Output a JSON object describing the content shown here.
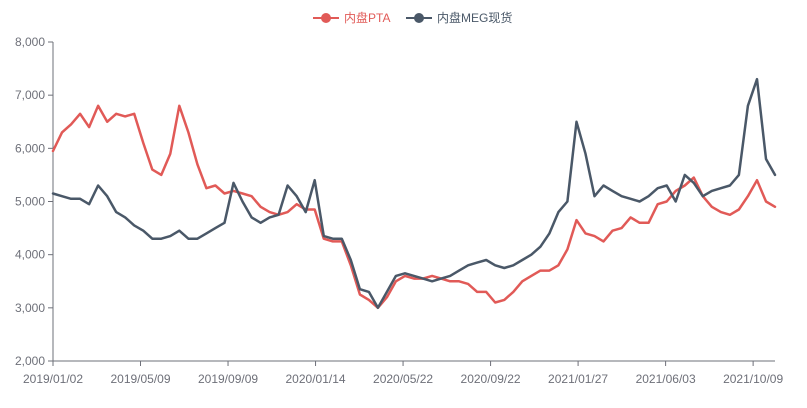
{
  "chart_data": {
    "type": "line",
    "title": "",
    "xlabel": "",
    "ylabel": "",
    "ylim": [
      2000,
      8000
    ],
    "y_ticks": [
      2000,
      3000,
      4000,
      5000,
      6000,
      7000,
      8000
    ],
    "y_tick_labels": [
      "2,000",
      "3,000",
      "4,000",
      "5,000",
      "6,000",
      "7,000",
      "8,000"
    ],
    "x_tick_labels": [
      "2019/01/02",
      "2019/05/09",
      "2019/09/09",
      "2020/01/14",
      "2020/05/22",
      "2020/09/22",
      "2021/01/27",
      "2021/06/03",
      "2021/10/09"
    ],
    "legend": {
      "position": "top-center"
    },
    "grid": false,
    "series": [
      {
        "name": "内盘PTA",
        "color": "#e15a57",
        "values": [
          5950,
          6300,
          6450,
          6650,
          6400,
          6800,
          6500,
          6650,
          6600,
          6650,
          6100,
          5600,
          5500,
          5900,
          6800,
          6300,
          5700,
          5250,
          5300,
          5150,
          5200,
          5150,
          5100,
          4900,
          4800,
          4750,
          4800,
          4950,
          4850,
          4850,
          4300,
          4250,
          4250,
          3800,
          3250,
          3150,
          3000,
          3200,
          3500,
          3600,
          3550,
          3550,
          3600,
          3550,
          3500,
          3500,
          3450,
          3300,
          3300,
          3100,
          3150,
          3300,
          3500,
          3600,
          3700,
          3700,
          3800,
          4100,
          4650,
          4400,
          4350,
          4250,
          4450,
          4500,
          4700,
          4600,
          4600,
          4950,
          5000,
          5200,
          5300,
          5450,
          5100,
          4900,
          4800,
          4750,
          4850,
          5100,
          5400,
          5000,
          4900
        ]
      },
      {
        "name": "内盘MEG现货",
        "color": "#4a5868",
        "values": [
          5150,
          5100,
          5050,
          5050,
          4950,
          5300,
          5100,
          4800,
          4700,
          4550,
          4450,
          4300,
          4300,
          4350,
          4450,
          4300,
          4300,
          4400,
          4500,
          4600,
          5350,
          5000,
          4700,
          4600,
          4700,
          4750,
          5300,
          5100,
          4800,
          5400,
          4350,
          4300,
          4300,
          3900,
          3350,
          3300,
          3000,
          3300,
          3600,
          3650,
          3600,
          3550,
          3500,
          3550,
          3600,
          3700,
          3800,
          3850,
          3900,
          3800,
          3750,
          3800,
          3900,
          4000,
          4150,
          4400,
          4800,
          5000,
          6500,
          5900,
          5100,
          5300,
          5200,
          5100,
          5050,
          5000,
          5100,
          5250,
          5300,
          5000,
          5500,
          5350,
          5100,
          5200,
          5250,
          5300,
          5500,
          6800,
          7300,
          5800,
          5500
        ]
      }
    ]
  }
}
